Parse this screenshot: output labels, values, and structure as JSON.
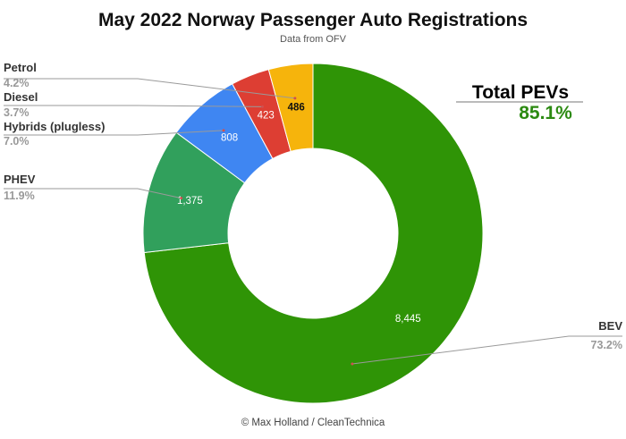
{
  "chart_data": {
    "type": "pie",
    "variant": "donut",
    "title": "May 2022 Norway Passenger Auto Registrations",
    "subtitle": "Data from OFV",
    "credit": "© Max Holland / CleanTechnica",
    "slices": [
      {
        "name": "BEV",
        "value": 8445,
        "pct": "73.2%",
        "color": "#2f9406",
        "label_color": "#ffffff"
      },
      {
        "name": "PHEV",
        "value": 1375,
        "value_label": "1,375",
        "pct": "11.9%",
        "color": "#31a05c",
        "label_color": "#ffffff"
      },
      {
        "name": "Hybrids (plugless)",
        "value": 808,
        "value_label": "808",
        "pct": "7.0%",
        "color": "#3f86f2",
        "label_color": "#ffffff"
      },
      {
        "name": "Diesel",
        "value": 423,
        "value_label": "423",
        "pct": "3.7%",
        "color": "#dd3e33",
        "label_color": "#ffffff"
      },
      {
        "name": "Petrol",
        "value": 486,
        "value_label": "486",
        "pct": "4.2%",
        "color": "#f6b40c",
        "label_color": "#111111"
      }
    ],
    "bev_value_label": "8,445",
    "annotation": {
      "title": "Total PEVs",
      "value": "85.1%",
      "value_color": "#2c8a12"
    }
  }
}
